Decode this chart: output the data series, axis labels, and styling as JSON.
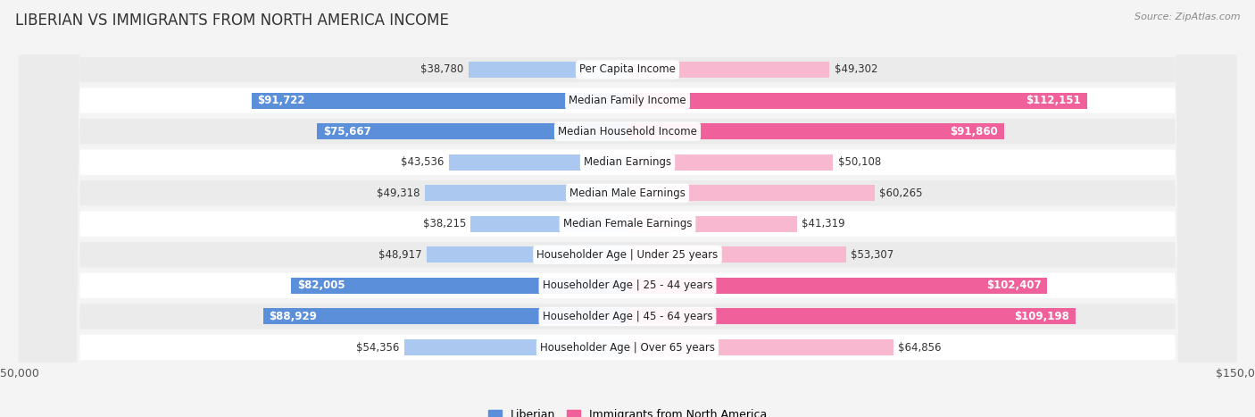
{
  "title": "LIBERIAN VS IMMIGRANTS FROM NORTH AMERICA INCOME",
  "source": "Source: ZipAtlas.com",
  "categories": [
    "Per Capita Income",
    "Median Family Income",
    "Median Household Income",
    "Median Earnings",
    "Median Male Earnings",
    "Median Female Earnings",
    "Householder Age | Under 25 years",
    "Householder Age | 25 - 44 years",
    "Householder Age | 45 - 64 years",
    "Householder Age | Over 65 years"
  ],
  "liberian_values": [
    38780,
    91722,
    75667,
    43536,
    49318,
    38215,
    48917,
    82005,
    88929,
    54356
  ],
  "immigrant_values": [
    49302,
    112151,
    91860,
    50108,
    60265,
    41319,
    53307,
    102407,
    109198,
    64856
  ],
  "liberian_color_dark": "#5b8fd9",
  "liberian_color_light": "#aac8f0",
  "immigrant_color_dark": "#f0609a",
  "immigrant_color_light": "#f8b8d0",
  "max_value": 150000,
  "bar_height": 0.52,
  "background_color": "#f4f4f4",
  "row_colors": [
    "#ffffff",
    "#ebebeb"
  ],
  "label_fontsize": 8.5,
  "title_fontsize": 12,
  "source_fontsize": 8,
  "legend_fontsize": 9,
  "value_color_dark": "#333333",
  "value_color_white": "#ffffff"
}
